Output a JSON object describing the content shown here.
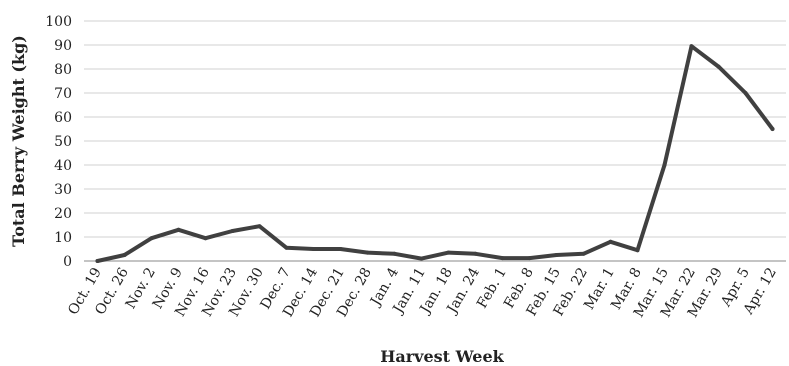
{
  "chart_data": {
    "type": "line",
    "title": "",
    "xlabel": "Harvest Week",
    "ylabel": "Total Berry Weight (kg)",
    "ylim": [
      0,
      100
    ],
    "yticks": [
      0,
      10,
      20,
      30,
      40,
      50,
      60,
      70,
      80,
      90,
      100
    ],
    "grid": true,
    "legend": "none",
    "line_color": "#404040",
    "grid_color": "#d0d0d0",
    "categories": [
      "Oct. 19",
      "Oct. 26",
      "Nov. 2",
      "Nov. 9",
      "Nov. 16",
      "Nov. 23",
      "Nov. 30",
      "Dec. 7",
      "Dec. 14",
      "Dec. 21",
      "Dec. 28",
      "Jan. 4",
      "Jan. 11",
      "Jan. 18",
      "Jan. 24",
      "Feb. 1",
      "Feb. 8",
      "Feb. 15",
      "Feb. 22",
      "Mar. 1",
      "Mar. 8",
      "Mar. 15",
      "Mar. 22",
      "Mar. 29",
      "Apr. 5",
      "Apr. 12"
    ],
    "series": [
      {
        "values": [
          0,
          2.5,
          9.5,
          13,
          9.5,
          12.5,
          14.5,
          5.5,
          5,
          5,
          3.5,
          3,
          1,
          3.5,
          3,
          1.2,
          1.2,
          2.5,
          3,
          8,
          4.5,
          40,
          89.5,
          81,
          70,
          55
        ]
      }
    ]
  }
}
